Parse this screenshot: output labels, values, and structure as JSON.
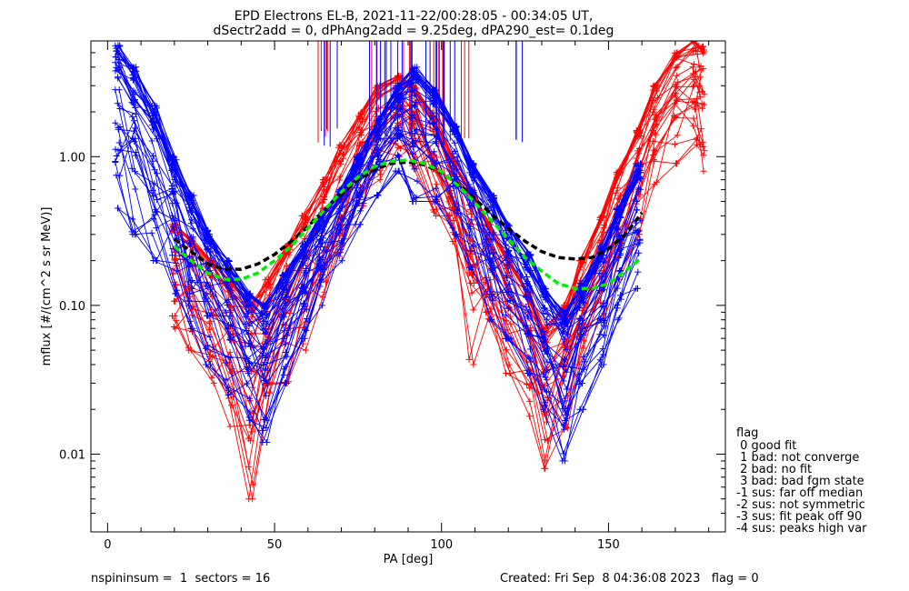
{
  "chart_data": {
    "type": "scatter",
    "title_line1": "EPD Electrons EL-B, 2021-11-22/00:28:05 - 00:34:05 UT,",
    "title_line2": "dSectr2add = 0, dPhAng2add = 9.25deg, dPA290_est=   0.1deg",
    "xlabel": "PA [deg]",
    "ylabel": "mflux [#/(cm^2 s sr MeV)]",
    "xlim": [
      -5,
      185
    ],
    "ylim": [
      0.003,
      6.0
    ],
    "yscale": "log",
    "xticks": [
      0,
      50,
      100,
      150
    ],
    "xtick_labels": [
      "0",
      "50",
      "100",
      "150"
    ],
    "yticks": [
      0.01,
      0.1,
      1.0
    ],
    "ytick_labels": [
      "0.01",
      "0.10",
      "1.00"
    ],
    "colors": {
      "red": "#ff0000",
      "blue": "#0000ff",
      "black": "#000000",
      "green": "#00ee00"
    },
    "series": [
      {
        "color": "blue",
        "x": [
          3,
          8,
          14,
          20,
          25,
          30,
          36,
          42,
          47,
          53,
          59,
          64,
          70,
          75,
          81,
          87,
          92,
          98,
          104,
          109,
          115,
          120,
          126,
          131,
          137,
          142,
          148,
          153,
          159
        ],
        "y_envelope_high": [
          5.6,
          4.0,
          2.2,
          1.0,
          0.55,
          0.32,
          0.2,
          0.12,
          0.1,
          0.16,
          0.26,
          0.4,
          0.6,
          1.0,
          1.8,
          3.0,
          4.0,
          2.8,
          1.6,
          0.9,
          0.55,
          0.35,
          0.22,
          0.13,
          0.09,
          0.14,
          0.25,
          0.45,
          0.9
        ],
        "y_envelope_low": [
          0.45,
          0.3,
          0.2,
          0.12,
          0.07,
          0.04,
          0.025,
          0.016,
          0.012,
          0.03,
          0.06,
          0.1,
          0.2,
          0.35,
          0.55,
          0.8,
          0.5,
          0.5,
          0.3,
          0.18,
          0.08,
          0.06,
          0.035,
          0.02,
          0.009,
          0.02,
          0.04,
          0.08,
          0.13
        ]
      },
      {
        "color": "red",
        "x": [
          20,
          25,
          31,
          37,
          43,
          48,
          54,
          59,
          65,
          70,
          76,
          81,
          87,
          92,
          98,
          103,
          109,
          114,
          120,
          126,
          131,
          137,
          142,
          148,
          153,
          159,
          164,
          170,
          176,
          178
        ],
        "y_envelope_high": [
          0.35,
          0.28,
          0.2,
          0.14,
          0.1,
          0.15,
          0.25,
          0.4,
          0.7,
          1.2,
          2.0,
          3.0,
          3.5,
          3.0,
          1.8,
          1.0,
          0.6,
          0.35,
          0.2,
          0.12,
          0.07,
          0.1,
          0.2,
          0.4,
          0.8,
          1.5,
          3.0,
          5.0,
          6.0,
          5.5
        ],
        "y_envelope_low": [
          0.07,
          0.05,
          0.03,
          0.015,
          0.005,
          0.012,
          0.03,
          0.05,
          0.1,
          0.2,
          0.4,
          0.7,
          1.0,
          0.8,
          0.4,
          0.2,
          0.04,
          0.07,
          0.035,
          0.018,
          0.008,
          0.015,
          0.04,
          0.08,
          0.15,
          0.3,
          0.6,
          0.9,
          1.2,
          0.75
        ]
      },
      {
        "color": "black",
        "style": "dashed",
        "x": [
          20,
          25,
          30,
          35,
          40,
          45,
          50,
          55,
          60,
          65,
          70,
          75,
          80,
          85,
          90,
          95,
          100,
          105,
          110,
          115,
          120,
          125,
          130,
          135,
          140,
          145,
          150,
          155,
          160
        ],
        "y": [
          0.28,
          0.23,
          0.19,
          0.175,
          0.175,
          0.19,
          0.22,
          0.27,
          0.34,
          0.44,
          0.56,
          0.7,
          0.82,
          0.9,
          0.92,
          0.88,
          0.78,
          0.65,
          0.52,
          0.41,
          0.33,
          0.27,
          0.23,
          0.21,
          0.205,
          0.21,
          0.24,
          0.3,
          0.42
        ]
      },
      {
        "color": "green",
        "style": "dashed",
        "x": [
          20,
          25,
          30,
          35,
          40,
          45,
          50,
          55,
          60,
          65,
          70,
          75,
          80,
          85,
          90,
          95,
          100,
          105,
          110,
          115,
          120,
          125,
          130,
          135,
          140,
          145,
          150,
          155,
          160
        ],
        "y": [
          0.25,
          0.2,
          0.165,
          0.15,
          0.15,
          0.165,
          0.2,
          0.25,
          0.33,
          0.44,
          0.58,
          0.73,
          0.86,
          0.93,
          0.95,
          0.9,
          0.79,
          0.64,
          0.49,
          0.37,
          0.28,
          0.21,
          0.17,
          0.14,
          0.13,
          0.13,
          0.14,
          0.17,
          0.21
        ]
      }
    ]
  },
  "legend": {
    "title": "flag",
    "items": [
      " 0 good fit",
      " 1 bad: not converge",
      " 2 bad: no fit",
      " 3 bad: bad fgm state",
      "-1 sus: far off median",
      "-2 sus: not symmetric",
      "-3 sus: fit peak off 90",
      "-4 sus: peaks high var"
    ]
  },
  "footer": {
    "left": "nspininsum =  1  sectors = 16",
    "right": "Created: Fri Sep  8 04:36:08 2023   flag = 0"
  }
}
